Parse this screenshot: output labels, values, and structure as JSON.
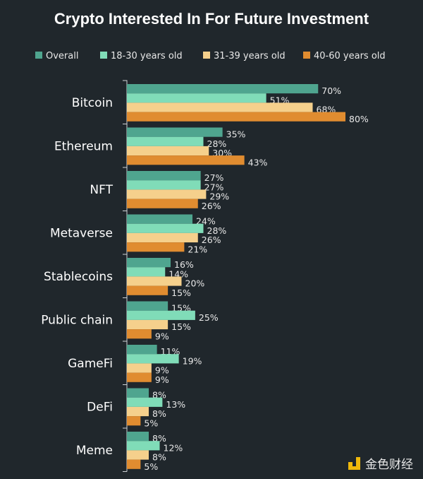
{
  "chart_data": {
    "type": "bar",
    "orientation": "horizontal",
    "title": "Crypto Interested In For Future Investment",
    "categories": [
      "Bitcoin",
      "Ethereum",
      "NFT",
      "Metaverse",
      "Stablecoins",
      "Public chain",
      "GameFi",
      "DeFi",
      "Meme"
    ],
    "series": [
      {
        "name": "Overall",
        "color": "#4fa58f",
        "values": [
          70,
          35,
          27,
          24,
          16,
          15,
          11,
          8,
          8
        ]
      },
      {
        "name": "18-30 years old",
        "color": "#80dcb8",
        "values": [
          51,
          28,
          27,
          28,
          14,
          25,
          19,
          13,
          12
        ]
      },
      {
        "name": "31-39 years old",
        "color": "#f5d08c",
        "values": [
          68,
          30,
          29,
          26,
          20,
          15,
          9,
          8,
          8
        ]
      },
      {
        "name": "40-60 years old",
        "color": "#e08c30",
        "values": [
          80,
          43,
          26,
          21,
          15,
          9,
          9,
          5,
          5
        ]
      }
    ],
    "value_format": "%",
    "legend_position": "top",
    "grid": false
  },
  "watermark": {
    "text": "金色财经",
    "color": "#f0b90b"
  }
}
